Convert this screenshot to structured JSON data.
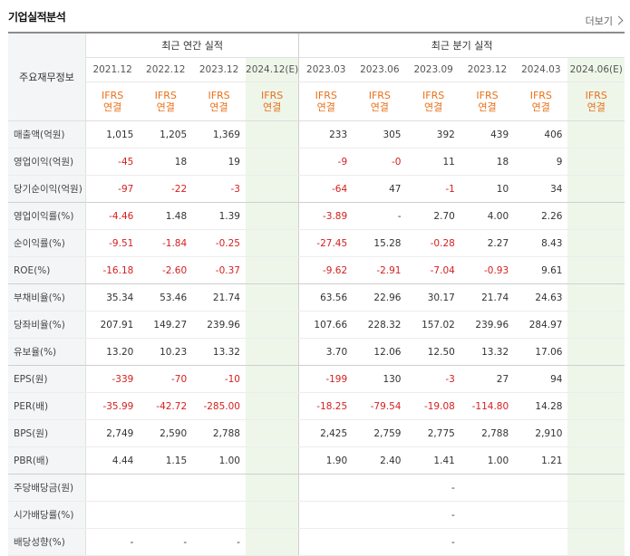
{
  "header": {
    "title": "기업실적분석",
    "more_label": "더보기"
  },
  "table": {
    "row_header_label": "주요재무정보",
    "annual_group_label": "최근 연간 실적",
    "quarterly_group_label": "최근 분기 실적",
    "periods": [
      "2021.12",
      "2022.12",
      "2023.12",
      "2024.12(E)",
      "2023.03",
      "2023.06",
      "2023.09",
      "2023.12",
      "2024.03",
      "2024.06(E)"
    ],
    "standard_top": "IFRS",
    "standard_bottom": "연결",
    "rows": [
      {
        "label": "매출액(억원)",
        "values": [
          "1,015",
          "1,205",
          "1,369",
          "",
          "233",
          "305",
          "392",
          "439",
          "406",
          ""
        ]
      },
      {
        "label": "영업이익(억원)",
        "values": [
          "-45",
          "18",
          "19",
          "",
          "-9",
          "-0",
          "11",
          "18",
          "9",
          ""
        ]
      },
      {
        "label": "당기순이익(억원)",
        "values": [
          "-97",
          "-22",
          "-3",
          "",
          "-64",
          "47",
          "-1",
          "10",
          "34",
          ""
        ]
      },
      {
        "label": "영업이익률(%)",
        "values": [
          "-4.46",
          "1.48",
          "1.39",
          "",
          "-3.89",
          "-",
          "2.70",
          "4.00",
          "2.26",
          ""
        ]
      },
      {
        "label": "순이익률(%)",
        "values": [
          "-9.51",
          "-1.84",
          "-0.25",
          "",
          "-27.45",
          "15.28",
          "-0.28",
          "2.27",
          "8.43",
          ""
        ]
      },
      {
        "label": "ROE(%)",
        "values": [
          "-16.18",
          "-2.60",
          "-0.37",
          "",
          "-9.62",
          "-2.91",
          "-7.04",
          "-0.93",
          "9.61",
          ""
        ]
      },
      {
        "label": "부채비율(%)",
        "values": [
          "35.34",
          "53.46",
          "21.74",
          "",
          "63.56",
          "22.96",
          "30.17",
          "21.74",
          "24.63",
          ""
        ]
      },
      {
        "label": "당좌비율(%)",
        "values": [
          "207.91",
          "149.27",
          "239.96",
          "",
          "107.66",
          "228.32",
          "157.02",
          "239.96",
          "284.97",
          ""
        ]
      },
      {
        "label": "유보율(%)",
        "values": [
          "13.20",
          "10.23",
          "13.32",
          "",
          "3.70",
          "12.06",
          "12.50",
          "13.32",
          "17.06",
          ""
        ]
      },
      {
        "label": "EPS(원)",
        "values": [
          "-339",
          "-70",
          "-10",
          "",
          "-199",
          "130",
          "-3",
          "27",
          "94",
          ""
        ]
      },
      {
        "label": "PER(배)",
        "values": [
          "-35.99",
          "-42.72",
          "-285.00",
          "",
          "-18.25",
          "-79.54",
          "-19.08",
          "-114.80",
          "14.28",
          ""
        ]
      },
      {
        "label": "BPS(원)",
        "values": [
          "2,749",
          "2,590",
          "2,788",
          "",
          "2,425",
          "2,759",
          "2,775",
          "2,788",
          "2,910",
          ""
        ]
      },
      {
        "label": "PBR(배)",
        "values": [
          "4.44",
          "1.15",
          "1.00",
          "",
          "1.90",
          "2.40",
          "1.41",
          "1.00",
          "1.21",
          ""
        ]
      },
      {
        "label": "주당배당금(원)",
        "values": [
          "",
          "",
          "",
          "",
          "",
          "",
          "-",
          "",
          "",
          ""
        ]
      },
      {
        "label": "시가배당률(%)",
        "values": [
          "",
          "",
          "",
          "",
          "",
          "",
          "-",
          "",
          "",
          ""
        ]
      },
      {
        "label": "배당성향(%)",
        "values": [
          "-",
          "-",
          "-",
          "",
          "",
          "",
          "-",
          "",
          "",
          ""
        ]
      }
    ]
  },
  "colors": {
    "negative": "#d42020",
    "standard": "#e8711b",
    "estimate_bg": "#eef6ea"
  }
}
